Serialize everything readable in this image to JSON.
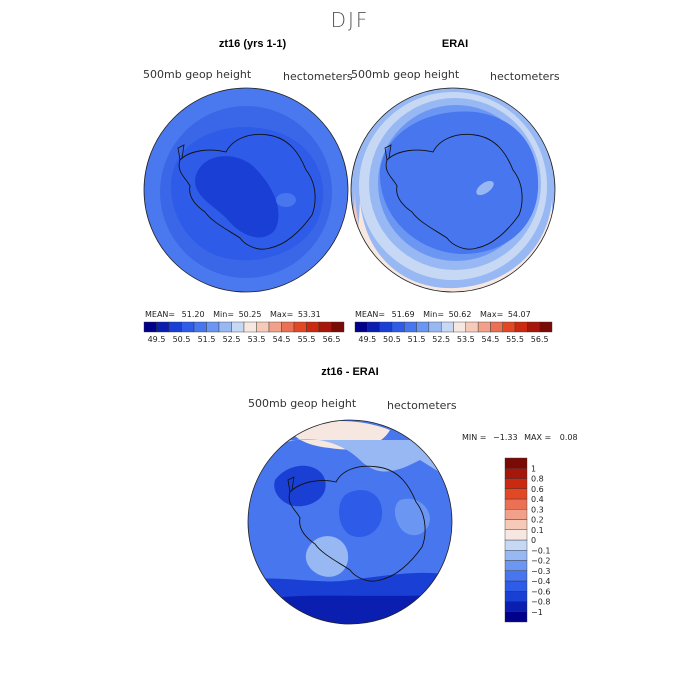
{
  "season_title": "DJF",
  "colors": {
    "abs_scale": [
      "#00008b",
      "#0a1fb0",
      "#1a3fd4",
      "#2e5ce8",
      "#4876ef",
      "#6b96f2",
      "#98b8f4",
      "#c7d8f5",
      "#f6e8e1",
      "#f6c9b8",
      "#f1a089",
      "#ea7154",
      "#e34825",
      "#cc2a10",
      "#a6160a",
      "#7a0a05"
    ],
    "diff_scale": [
      "#00008b",
      "#0a1fb0",
      "#1a3fd4",
      "#2e5ce8",
      "#4876ef",
      "#6b96f2",
      "#98b8f4",
      "#c7d8f5",
      "#f6e8e1",
      "#f6c9b8",
      "#f1a089",
      "#ea7154",
      "#e34825",
      "#cc2a10",
      "#a6160a",
      "#7a0a05"
    ]
  },
  "panels": {
    "model": {
      "title": "zt16 (yrs 1-1)",
      "variable": "500mb geop height",
      "units": "hectometers",
      "mean_label": "MEAN=",
      "mean": "51.20",
      "min_label": "Min=",
      "min": "50.25",
      "max_label": "Max=",
      "max": "53.31"
    },
    "obs": {
      "title": "ERAI",
      "variable": "500mb geop height",
      "units": "hectometers",
      "mean_label": "MEAN=",
      "mean": "51.69",
      "min_label": "Min=",
      "min": "50.62",
      "max_label": "Max=",
      "max": "54.07"
    },
    "diff": {
      "title": "zt16 - ERAI",
      "variable": "500mb geop height",
      "units": "hectometers",
      "min_label": "MIN =",
      "min": "−1.33",
      "max_label": "MAX =",
      "max": "0.08"
    }
  },
  "chart_data": [
    {
      "type": "heatmap",
      "title": "zt16 (yrs 1-1)",
      "subtitle": "500mb geop height",
      "units": "hectometers",
      "projection": "south polar stereographic",
      "contour_levels": [
        49.5,
        50.5,
        51.5,
        52.5,
        53.5,
        54.5,
        55.5,
        56.5
      ],
      "colorbar_ticks": [
        "49.5",
        "50.5",
        "51.5",
        "52.5",
        "53.5",
        "54.5",
        "55.5",
        "56.5"
      ],
      "stats": {
        "mean": 51.2,
        "min": 50.25,
        "max": 53.31
      }
    },
    {
      "type": "heatmap",
      "title": "ERAI",
      "subtitle": "500mb geop height",
      "units": "hectometers",
      "projection": "south polar stereographic",
      "contour_levels": [
        49.5,
        50.5,
        51.5,
        52.5,
        53.5,
        54.5,
        55.5,
        56.5
      ],
      "colorbar_ticks": [
        "49.5",
        "50.5",
        "51.5",
        "52.5",
        "53.5",
        "54.5",
        "55.5",
        "56.5"
      ],
      "stats": {
        "mean": 51.69,
        "min": 50.62,
        "max": 54.07
      }
    },
    {
      "type": "heatmap",
      "title": "zt16 - ERAI",
      "subtitle": "500mb geop height",
      "units": "hectometers",
      "projection": "south polar stereographic",
      "contour_levels": [
        -1,
        -0.8,
        -0.6,
        -0.4,
        -0.3,
        -0.2,
        -0.1,
        0,
        0.1,
        0.2,
        0.3,
        0.4,
        0.6,
        0.8,
        1
      ],
      "colorbar_ticks": [
        "1",
        "0.8",
        "0.6",
        "0.4",
        "0.3",
        "0.2",
        "0.1",
        "0",
        "−0.1",
        "−0.2",
        "−0.3",
        "−0.4",
        "−0.6",
        "−0.8",
        "−1"
      ],
      "stats": {
        "min": -1.33,
        "max": 0.08
      }
    }
  ]
}
